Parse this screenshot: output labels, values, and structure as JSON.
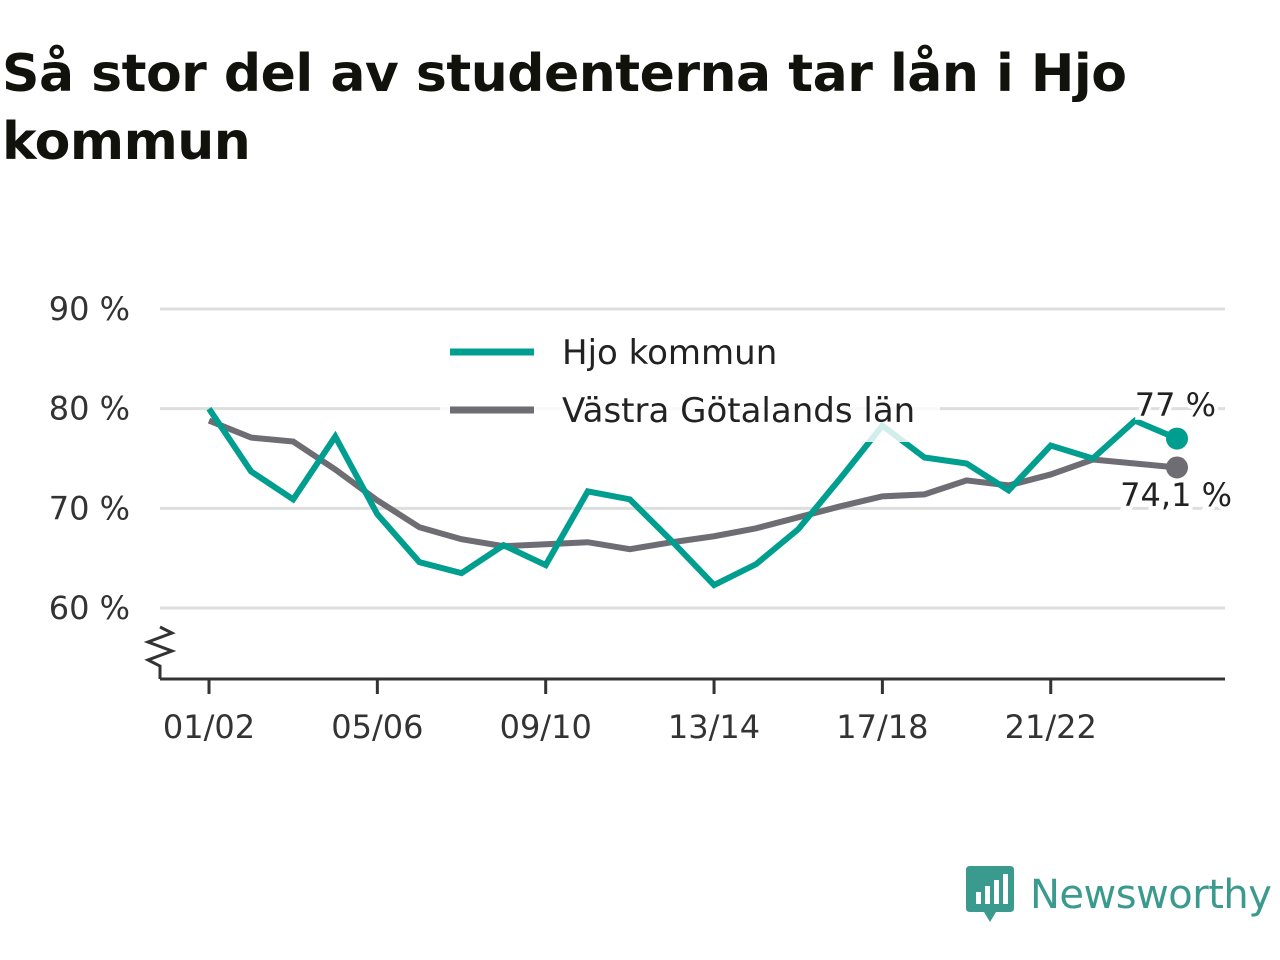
{
  "title": "Så stor del av studenterna tar lån i Hjo kommun",
  "brand": {
    "name": "Newsworthy",
    "icon": "newsworthy-logo-icon",
    "color": "#3a9a8e"
  },
  "chart_data": {
    "type": "line",
    "title": "Så stor del av studenterna tar lån i Hjo kommun",
    "xlabel": "",
    "ylabel": "",
    "x": [
      "01/02",
      "02/03",
      "03/04",
      "04/05",
      "05/06",
      "06/07",
      "07/08",
      "08/09",
      "09/10",
      "10/11",
      "11/12",
      "12/13",
      "13/14",
      "14/15",
      "15/16",
      "16/17",
      "17/18",
      "18/19",
      "19/20",
      "20/21",
      "21/22",
      "22/23",
      "23/24",
      "24/25"
    ],
    "x_tick_labels": [
      "01/02",
      "05/06",
      "09/10",
      "13/14",
      "17/18",
      "21/22"
    ],
    "y_tick_labels": [
      "90 %",
      "80 %",
      "70 %",
      "60 %"
    ],
    "y_ticks": [
      90,
      80,
      70,
      60
    ],
    "ylim": [
      53,
      90
    ],
    "y_axis_break": true,
    "grid": true,
    "legend_position": "top-center",
    "series": [
      {
        "name": "Hjo kommun",
        "color": "#009e8e",
        "values": [
          80.0,
          73.7,
          70.9,
          77.2,
          69.4,
          64.6,
          63.5,
          66.3,
          64.3,
          71.7,
          70.9,
          66.7,
          62.3,
          64.4,
          67.9,
          73.0,
          78.3,
          75.1,
          74.5,
          71.8,
          76.3,
          75.0,
          78.8,
          77.0
        ],
        "end_label": "77 %"
      },
      {
        "name": "Västra Götalands län",
        "color": "#6e6d73",
        "values": [
          78.8,
          77.1,
          76.7,
          73.9,
          70.8,
          68.1,
          66.9,
          66.2,
          66.4,
          66.6,
          65.9,
          66.6,
          67.2,
          68.0,
          69.1,
          70.2,
          71.2,
          71.4,
          72.8,
          72.3,
          73.4,
          74.9,
          74.5,
          74.1
        ],
        "end_label": "74,1 %"
      }
    ]
  }
}
